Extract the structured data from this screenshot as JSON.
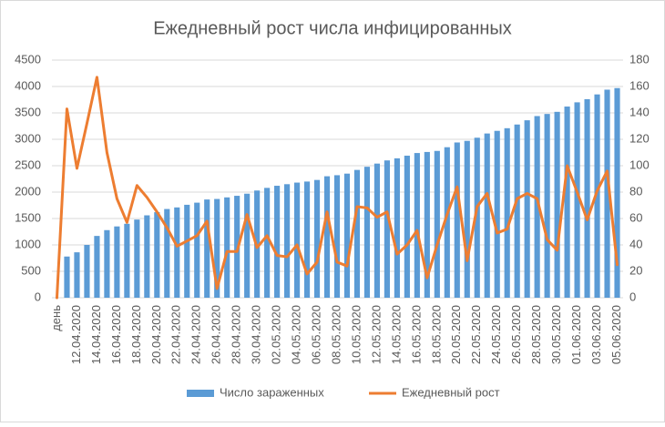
{
  "chart_data": {
    "type": "bar+line",
    "title": "Ежедневный рост числа инфицированных",
    "categories": [
      "день",
      null,
      "12.04.2020",
      null,
      "14.04.2020",
      null,
      "16.04.2020",
      null,
      "18.04.2020",
      null,
      "20.04.2020",
      null,
      "22.04.2020",
      null,
      "24.04.2020",
      null,
      "26.04.2020",
      null,
      "28.04.2020",
      null,
      "30.04.2020",
      null,
      "02.05.2020",
      null,
      "04.05.2020",
      null,
      "06.05.2020",
      null,
      "08.05.2020",
      null,
      "10.05.2020",
      null,
      "12.05.2020",
      null,
      "14.05.2020",
      null,
      "16.05.2020",
      null,
      "18.05.2020",
      null,
      "20.05.2020",
      null,
      "22.05.2020",
      null,
      "24.05.2020",
      null,
      "26.05.2020",
      null,
      "28.05.2020",
      null,
      "30.05.2020",
      null,
      "01.06.2020",
      null,
      "03.06.2020",
      null,
      "05.06.2020"
    ],
    "series": [
      {
        "name": "Число зараженных",
        "type": "bar",
        "color": "#5b9bd5",
        "axis": "y",
        "values": [
          null,
          780,
          860,
          1000,
          1170,
          1280,
          1350,
          1400,
          1480,
          1560,
          1620,
          1680,
          1710,
          1760,
          1800,
          1860,
          1870,
          1900,
          1930,
          1970,
          2030,
          2080,
          2120,
          2150,
          2180,
          2200,
          2230,
          2300,
          2320,
          2350,
          2420,
          2480,
          2540,
          2600,
          2640,
          2690,
          2740,
          2760,
          2780,
          2850,
          2940,
          2970,
          3030,
          3110,
          3160,
          3210,
          3280,
          3360,
          3440,
          3480,
          3520,
          3620,
          3700,
          3760,
          3850,
          3940,
          3970
        ]
      },
      {
        "name": "Ежедневный рост",
        "type": "line",
        "color": "#ed7d31",
        "axis": "y2",
        "values": [
          0,
          143,
          98,
          132,
          167,
          110,
          75,
          57,
          85,
          76,
          65,
          53,
          39,
          43,
          47,
          58,
          7,
          35,
          35,
          63,
          38,
          47,
          32,
          31,
          40,
          18,
          27,
          65,
          27,
          24,
          69,
          68,
          61,
          65,
          33,
          40,
          51,
          15,
          40,
          63,
          84,
          28,
          69,
          79,
          49,
          52,
          75,
          79,
          75,
          44,
          36,
          100,
          80,
          59,
          81,
          96,
          25
        ]
      }
    ],
    "ylim": [
      0,
      4500
    ],
    "yticks": [
      0,
      500,
      1000,
      1500,
      2000,
      2500,
      3000,
      3500,
      4000,
      4500
    ],
    "y2lim": [
      0,
      180
    ],
    "y2ticks": [
      0,
      20,
      40,
      60,
      80,
      100,
      120,
      140,
      160,
      180
    ],
    "grid": true,
    "legend": "bottom"
  }
}
